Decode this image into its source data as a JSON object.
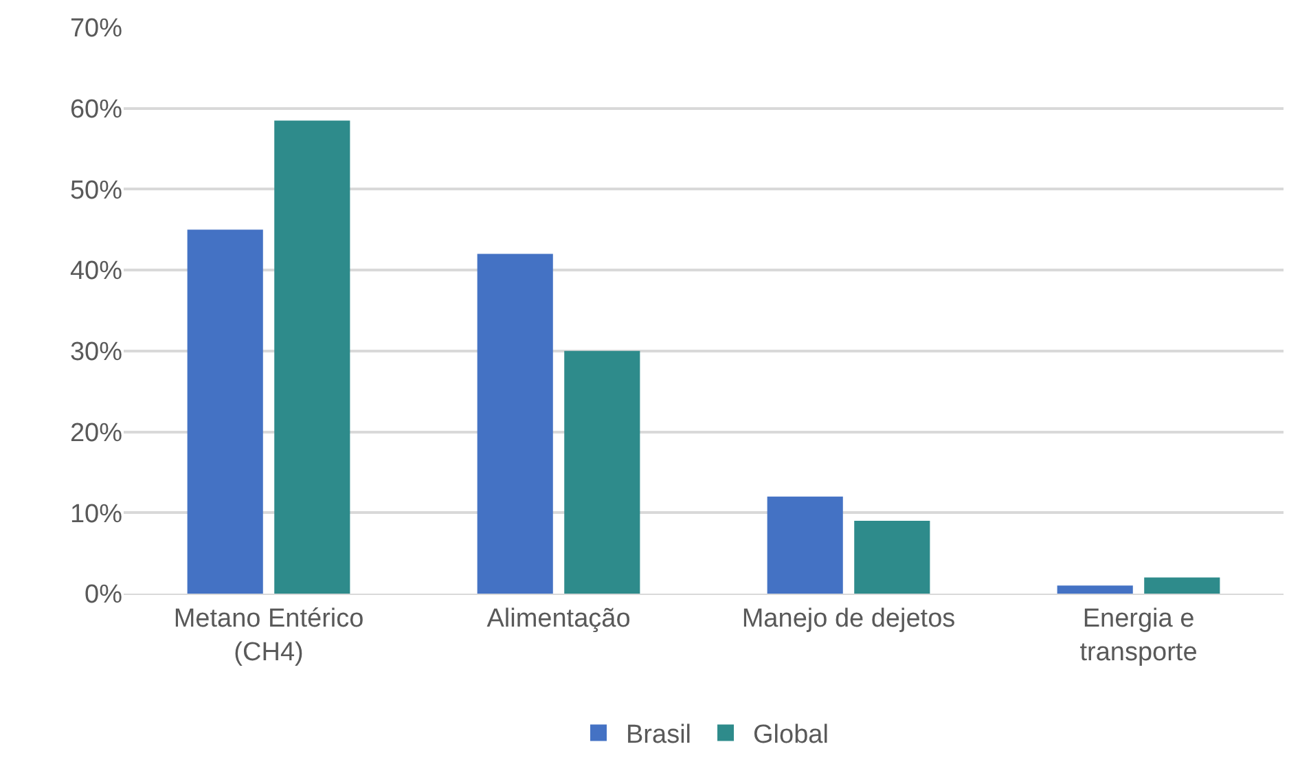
{
  "chart_data": {
    "type": "bar",
    "categories": [
      "Metano Entérico (CH4)",
      "Alimentação",
      "Manejo de dejetos",
      "Energia e transporte"
    ],
    "series": [
      {
        "name": "Brasil",
        "color": "#4472c4",
        "values": [
          45,
          42,
          12,
          1
        ]
      },
      {
        "name": "Global",
        "color": "#2e8b8b",
        "values": [
          58.5,
          30,
          9,
          2
        ]
      }
    ],
    "ylim": [
      0,
      70
    ],
    "yticks": [
      {
        "value": 0,
        "label": "0%"
      },
      {
        "value": 10,
        "label": "10%"
      },
      {
        "value": 20,
        "label": "20%"
      },
      {
        "value": 30,
        "label": "30%"
      },
      {
        "value": 40,
        "label": "40%"
      },
      {
        "value": 50,
        "label": "50%"
      },
      {
        "value": 60,
        "label": "60%"
      },
      {
        "value": 70,
        "label": "70%"
      }
    ],
    "grid": "y",
    "legend": "bottom"
  }
}
